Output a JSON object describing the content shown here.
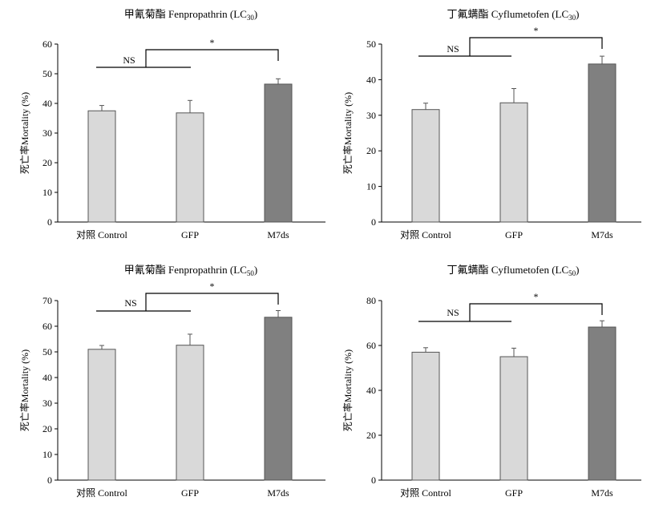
{
  "colors": {
    "control": "#d9d9d9",
    "gfp": "#d9d9d9",
    "m7ds": "#808080",
    "axis": "#000000"
  },
  "chart_data": [
    {
      "type": "bar",
      "title": "甲氰菊酯 Fenpropathrin (LC30)",
      "title_main": "甲氰菊酯 Fenpropathrin (LC",
      "title_sub": "30",
      "title_end": ")",
      "ylabel": "死亡率Mortality (%)",
      "categories": [
        "对照 Control",
        "GFP",
        "M7ds"
      ],
      "values": [
        37.5,
        36.8,
        46.5
      ],
      "errors": [
        1.8,
        4.2,
        1.8
      ],
      "ylim": [
        0,
        60
      ],
      "yticks": [
        0,
        10,
        20,
        30,
        40,
        50,
        60
      ],
      "annotations": {
        "ns_label": "NS",
        "sig_label": "*"
      }
    },
    {
      "type": "bar",
      "title": "丁氟螨酯 Cyflumetofen (LC30)",
      "title_main": "丁氟螨酯 Cyflumetofen (LC",
      "title_sub": "30",
      "title_end": ")",
      "ylabel": "死亡率Mortality (%)",
      "categories": [
        "对照 Control",
        "GFP",
        "M7ds"
      ],
      "values": [
        31.6,
        33.5,
        44.4
      ],
      "errors": [
        1.8,
        4.0,
        2.2
      ],
      "ylim": [
        0,
        50
      ],
      "yticks": [
        0,
        10,
        20,
        30,
        40,
        50
      ],
      "annotations": {
        "ns_label": "NS",
        "sig_label": "*"
      }
    },
    {
      "type": "bar",
      "title": "甲氰菊酯 Fenpropathrin (LC50)",
      "title_main": "甲氰菊酯 Fenpropathrin (LC",
      "title_sub": "50",
      "title_end": ")",
      "ylabel": "死亡率Mortality (%)",
      "categories": [
        "对照 Control",
        "GFP",
        "M7ds"
      ],
      "values": [
        51.0,
        52.6,
        63.5
      ],
      "errors": [
        1.5,
        4.3,
        2.6
      ],
      "ylim": [
        0,
        70
      ],
      "yticks": [
        0,
        10,
        20,
        30,
        40,
        50,
        60,
        70
      ],
      "annotations": {
        "ns_label": "NS",
        "sig_label": "*"
      }
    },
    {
      "type": "bar",
      "title": "丁氟螨酯 Cyflumetofen (LC50)",
      "title_main": "丁氟螨酯 Cyflumetofen (LC",
      "title_sub": "50",
      "title_end": ")",
      "ylabel": "死亡率Mortality (%)",
      "categories": [
        "对照 Control",
        "GFP",
        "M7ds"
      ],
      "values": [
        57.0,
        55.0,
        68.2
      ],
      "errors": [
        2.0,
        3.8,
        2.8
      ],
      "ylim": [
        0,
        80
      ],
      "yticks": [
        0,
        20,
        40,
        60,
        80
      ],
      "annotations": {
        "ns_label": "NS",
        "sig_label": "*"
      }
    }
  ]
}
